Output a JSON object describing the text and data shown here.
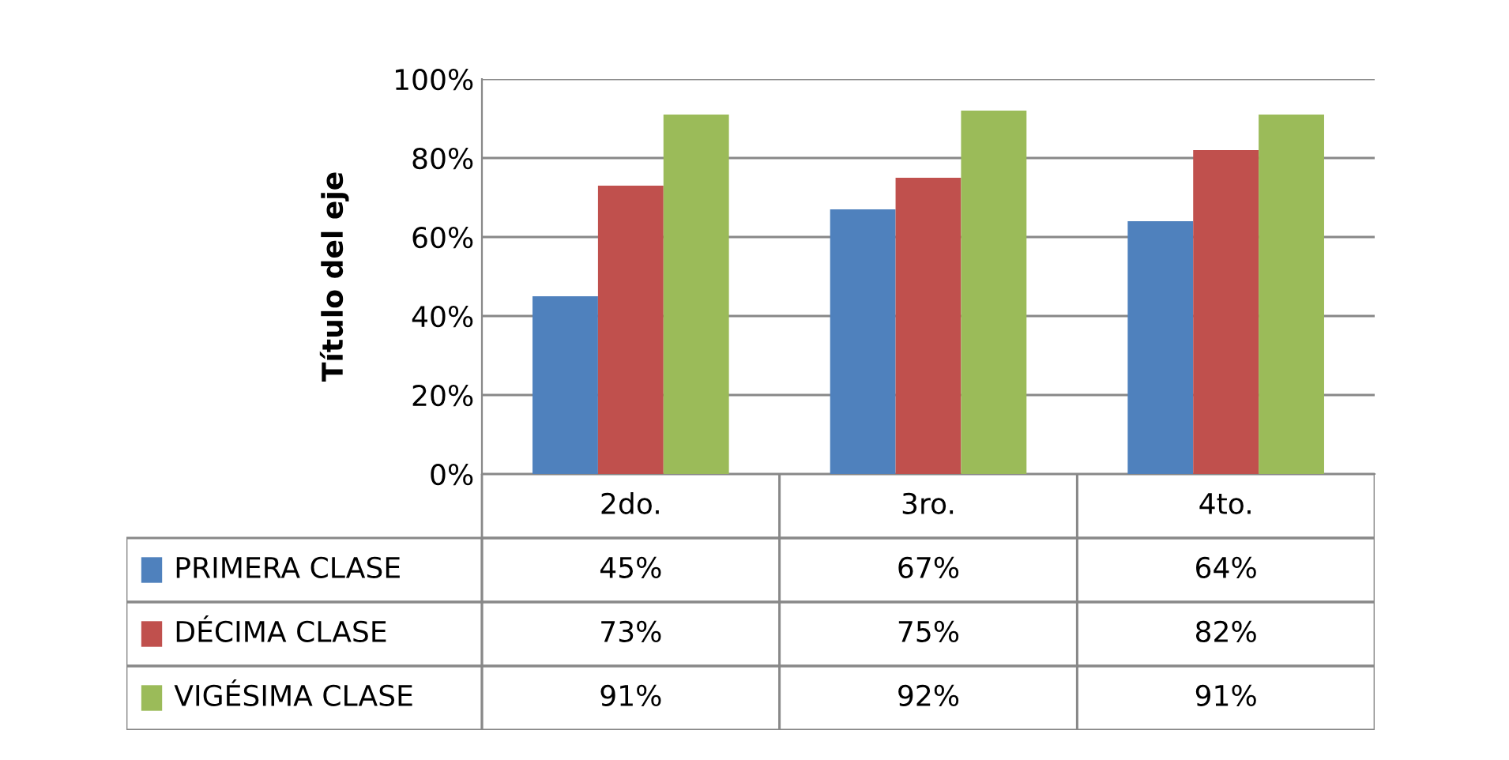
{
  "chart_data": {
    "type": "bar",
    "ylabel": "Título del eje",
    "categories": [
      "2do.",
      "3ro.",
      "4to."
    ],
    "series": [
      {
        "name": "PRIMERA CLASE",
        "color": "#4f81bd",
        "values": [
          45,
          67,
          64
        ],
        "value_labels": [
          "45%",
          "67%",
          "64%"
        ]
      },
      {
        "name": "DÉCIMA CLASE",
        "color": "#c0504d",
        "values": [
          73,
          75,
          82
        ],
        "value_labels": [
          "73%",
          "75%",
          "82%"
        ]
      },
      {
        "name": "VIGÉSIMA CLASE",
        "color": "#9bbb59",
        "values": [
          91,
          92,
          91
        ],
        "value_labels": [
          "91%",
          "92%",
          "91%"
        ]
      }
    ],
    "ylim": [
      0,
      100
    ],
    "yticks": [
      {
        "value": 0,
        "label": "0%"
      },
      {
        "value": 20,
        "label": "20%"
      },
      {
        "value": 40,
        "label": "40%"
      },
      {
        "value": 60,
        "label": "60%"
      },
      {
        "value": 80,
        "label": "80%"
      },
      {
        "value": 100,
        "label": "100%"
      }
    ],
    "grid": "y",
    "legend": "bottom"
  }
}
